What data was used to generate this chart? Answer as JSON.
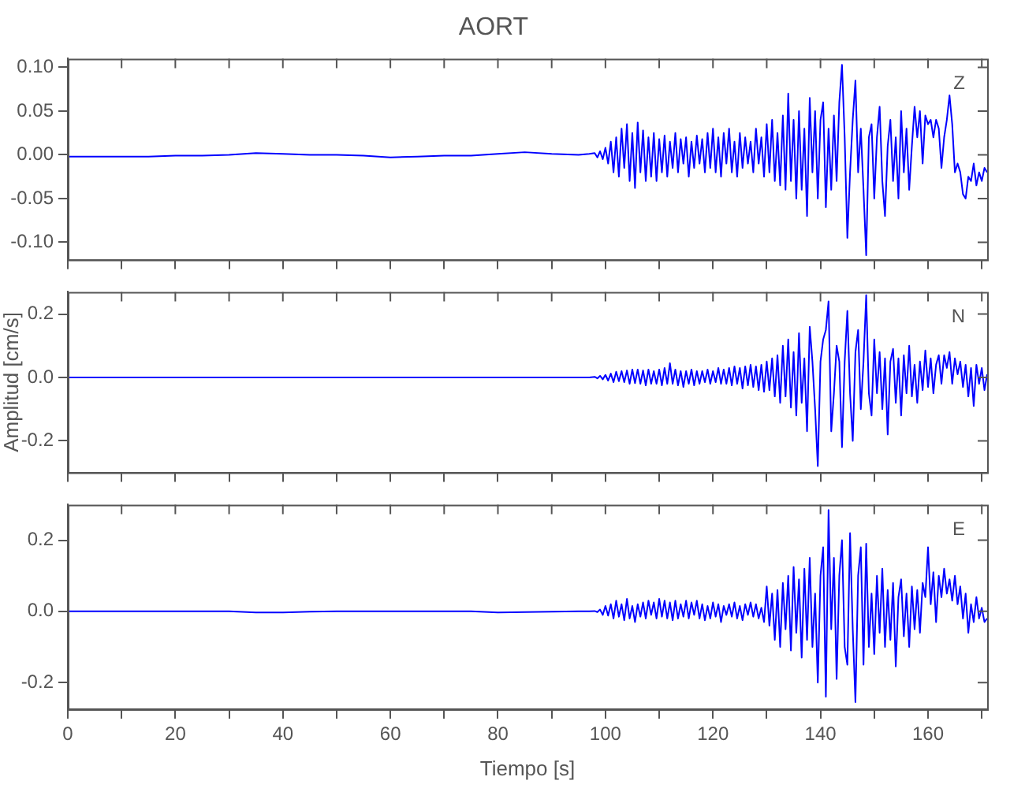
{
  "chart_data": [
    {
      "type": "line",
      "title": "AORT",
      "annotations": [
        "Z"
      ],
      "tick_labels": "y",
      "marker": "none",
      "line_style": "solid",
      "x": [
        0,
        5,
        10,
        15,
        20,
        25,
        30,
        35,
        40,
        45,
        50,
        55,
        60,
        65,
        70,
        75,
        80,
        85,
        90,
        95,
        97,
        98,
        98.5,
        99,
        99.5,
        100,
        100.5,
        101,
        101.5,
        102,
        102.5,
        103,
        103.5,
        104,
        104.5,
        105,
        105.5,
        106,
        106.5,
        107,
        107.5,
        108,
        108.5,
        109,
        109.5,
        110,
        110.5,
        111,
        111.5,
        112,
        112.5,
        113,
        113.5,
        114,
        114.5,
        115,
        115.5,
        116,
        116.5,
        117,
        117.5,
        118,
        118.5,
        119,
        119.5,
        120,
        120.5,
        121,
        121.5,
        122,
        122.5,
        123,
        123.5,
        124,
        124.5,
        125,
        125.5,
        126,
        126.5,
        127,
        127.5,
        128,
        128.5,
        129,
        129.5,
        130,
        130.5,
        131,
        131.5,
        132,
        132.5,
        133,
        133.5,
        134,
        134.5,
        135,
        135.5,
        136,
        136.5,
        137,
        137.5,
        138,
        138.5,
        139,
        139.5,
        140,
        140.5,
        141,
        141.5,
        142,
        142.5,
        143,
        143.5,
        144,
        144.5,
        145,
        145.5,
        146,
        146.5,
        147,
        147.5,
        148,
        148.5,
        149,
        149.5,
        150,
        150.5,
        151,
        151.5,
        152,
        152.5,
        153,
        153.5,
        154,
        154.5,
        155,
        155.5,
        156,
        156.5,
        157,
        157.5,
        158,
        158.5,
        159,
        159.5,
        160,
        160.5,
        161,
        161.5,
        162,
        162.5,
        163,
        163.5,
        164,
        164.5,
        165,
        165.5,
        166,
        166.5,
        167,
        167.5,
        168,
        168.5,
        169,
        169.5,
        170,
        170.5,
        171
      ],
      "xlim": [
        0,
        171
      ],
      "xticks": [
        0,
        10,
        20,
        30,
        40,
        50,
        60,
        70,
        80,
        90,
        100,
        110,
        120,
        130,
        140,
        150,
        160,
        170
      ],
      "ylim": [
        -0.12,
        0.11
      ],
      "yticks": [
        {
          "value": -0.1,
          "label": "-0.10"
        },
        {
          "value": -0.05,
          "label": "-0.05"
        },
        {
          "value": 0,
          "label": "0.00"
        },
        {
          "value": 0.05,
          "label": "0.05"
        },
        {
          "value": 0.1,
          "label": "0.10"
        }
      ],
      "series": [
        {
          "color": "#0000ff",
          "values": [
            -0.002,
            -0.002,
            -0.002,
            -0.002,
            -0.001,
            -0.001,
            0,
            0.002,
            0.001,
            0,
            0,
            -0.001,
            -0.003,
            -0.002,
            -0.001,
            -0.001,
            0.001,
            0.003,
            0.001,
            0,
            0.001,
            0.002,
            -0.003,
            0.004,
            -0.005,
            0.008,
            -0.01,
            0.015,
            -0.02,
            0.02,
            -0.025,
            0.03,
            -0.015,
            0.035,
            -0.03,
            0.025,
            -0.038,
            0.037,
            -0.02,
            0.028,
            -0.03,
            0.02,
            -0.025,
            0.025,
            -0.03,
            0.018,
            -0.02,
            0.022,
            -0.025,
            0.015,
            -0.015,
            0.025,
            -0.02,
            0.018,
            -0.01,
            0.02,
            -0.025,
            0.015,
            -0.015,
            0.022,
            -0.01,
            0.018,
            -0.02,
            0.025,
            -0.015,
            0.03,
            -0.02,
            0.02,
            -0.025,
            0.025,
            -0.01,
            0.03,
            -0.02,
            0.015,
            -0.025,
            0.025,
            -0.015,
            0.02,
            -0.01,
            0.015,
            -0.02,
            0.03,
            -0.01,
            0.02,
            -0.025,
            0.035,
            -0.02,
            0.04,
            -0.03,
            0.025,
            -0.035,
            0.045,
            -0.04,
            0.07,
            -0.03,
            0.04,
            -0.05,
            0.05,
            -0.04,
            0.03,
            -0.07,
            0.065,
            -0.02,
            0.05,
            -0.05,
            0.04,
            0.06,
            -0.06,
            0.03,
            -0.04,
            0.045,
            -0.03,
            0.06,
            0.103,
            0.02,
            -0.095,
            -0.02,
            0.04,
            0.085,
            -0.02,
            0.03,
            -0.04,
            -0.115,
            0.02,
            0.035,
            -0.05,
            0.02,
            0.055,
            -0.03,
            -0.07,
            0.01,
            0.04,
            -0.03,
            0.02,
            -0.05,
            0.05,
            -0.02,
            0.03,
            -0.04,
            0.01,
            0.055,
            0.02,
            0.05,
            -0.01,
            0.045,
            0.035,
            0.04,
            0.02,
            0.04,
            0.03,
            -0.015,
            0.02,
            0.04,
            0.068,
            0.035,
            -0.02,
            -0.01,
            -0.02,
            -0.045,
            -0.05,
            -0.025,
            -0.03,
            -0.01,
            -0.035,
            -0.02,
            -0.03,
            -0.015,
            -0.02
          ]
        }
      ]
    },
    {
      "type": "line",
      "ylabel": "Amplitud [cm/s]",
      "annotations": [
        "N"
      ],
      "tick_labels": "y",
      "marker": "none",
      "line_style": "solid",
      "x": [
        0,
        5,
        10,
        15,
        20,
        25,
        30,
        35,
        40,
        45,
        50,
        55,
        60,
        65,
        70,
        75,
        80,
        85,
        90,
        95,
        97,
        98,
        98.5,
        99,
        99.5,
        100,
        100.5,
        101,
        101.5,
        102,
        102.5,
        103,
        103.5,
        104,
        104.5,
        105,
        105.5,
        106,
        106.5,
        107,
        107.5,
        108,
        108.5,
        109,
        109.5,
        110,
        110.5,
        111,
        111.5,
        112,
        112.5,
        113,
        113.5,
        114,
        114.5,
        115,
        115.5,
        116,
        116.5,
        117,
        117.5,
        118,
        118.5,
        119,
        119.5,
        120,
        120.5,
        121,
        121.5,
        122,
        122.5,
        123,
        123.5,
        124,
        124.5,
        125,
        125.5,
        126,
        126.5,
        127,
        127.5,
        128,
        128.5,
        129,
        129.5,
        130,
        130.5,
        131,
        131.5,
        132,
        132.5,
        133,
        133.5,
        134,
        134.5,
        135,
        135.5,
        136,
        136.5,
        137,
        137.5,
        138,
        138.5,
        139,
        139.5,
        140,
        140.5,
        141,
        141.5,
        142,
        142.5,
        143,
        143.5,
        144,
        144.5,
        145,
        145.5,
        146,
        146.5,
        147,
        147.5,
        148,
        148.5,
        149,
        149.5,
        150,
        150.5,
        151,
        151.5,
        152,
        152.5,
        153,
        153.5,
        154,
        154.5,
        155,
        155.5,
        156,
        156.5,
        157,
        157.5,
        158,
        158.5,
        159,
        159.5,
        160,
        160.5,
        161,
        161.5,
        162,
        162.5,
        163,
        163.5,
        164,
        164.5,
        165,
        165.5,
        166,
        166.5,
        167,
        167.5,
        168,
        168.5,
        169,
        169.5,
        170,
        170.5,
        171
      ],
      "xlim": [
        0,
        171
      ],
      "xticks": [
        0,
        10,
        20,
        30,
        40,
        50,
        60,
        70,
        80,
        90,
        100,
        110,
        120,
        130,
        140,
        150,
        160,
        170
      ],
      "ylim": [
        -0.3,
        0.27
      ],
      "yticks": [
        {
          "value": -0.2,
          "label": "-0.2"
        },
        {
          "value": 0,
          "label": "0.0"
        },
        {
          "value": 0.2,
          "label": "0.2"
        }
      ],
      "series": [
        {
          "color": "#0000ff",
          "values": [
            0,
            0,
            0,
            0,
            0,
            0,
            0,
            0,
            0,
            0,
            0,
            0,
            0,
            0,
            0,
            0,
            0,
            0,
            0,
            0,
            0,
            0.002,
            -0.003,
            0.005,
            -0.006,
            0.008,
            -0.01,
            0.012,
            -0.015,
            0.018,
            -0.012,
            0.02,
            -0.015,
            0.022,
            -0.02,
            0.025,
            -0.018,
            0.025,
            -0.02,
            0.022,
            -0.025,
            0.025,
            -0.02,
            0.02,
            -0.02,
            0.025,
            -0.025,
            0.03,
            -0.02,
            0.045,
            -0.02,
            0.025,
            -0.025,
            0.02,
            -0.03,
            0.02,
            -0.02,
            0.025,
            -0.025,
            0.02,
            -0.02,
            0.02,
            -0.015,
            0.025,
            -0.02,
            0.02,
            -0.015,
            0.03,
            -0.02,
            0.025,
            -0.02,
            0.03,
            -0.025,
            0.035,
            -0.02,
            0.03,
            -0.035,
            0.035,
            -0.025,
            0.04,
            -0.03,
            0.035,
            -0.04,
            0.04,
            -0.045,
            0.05,
            -0.04,
            0.06,
            -0.06,
            0.07,
            -0.08,
            0.1,
            -0.06,
            0.12,
            -0.095,
            0.08,
            -0.12,
            0.14,
            -0.08,
            0.06,
            -0.17,
            0.16,
            0.05,
            -0.1,
            -0.28,
            0.05,
            0.12,
            0.15,
            0.24,
            -0.17,
            -0.05,
            0.1,
            0.05,
            -0.22,
            0.05,
            0.21,
            -0.05,
            -0.2,
            0.08,
            0.15,
            -0.1,
            0.05,
            0.26,
            -0.05,
            -0.12,
            0.12,
            -0.05,
            0.08,
            -0.1,
            0.06,
            -0.18,
            0.05,
            0.09,
            -0.08,
            0.06,
            -0.12,
            0.07,
            -0.05,
            0.1,
            -0.06,
            0.04,
            -0.08,
            0.05,
            -0.04,
            0.085,
            -0.03,
            0.06,
            -0.05,
            0.04,
            0.07,
            -0.02,
            0.07,
            0.03,
            0.08,
            -0.02,
            0.06,
            0.01,
            0.05,
            -0.03,
            0.04,
            -0.06,
            0.03,
            -0.09,
            0.04,
            -0.02,
            0.03,
            -0.04,
            0.01
          ]
        }
      ]
    },
    {
      "type": "line",
      "xlabel": "Tiempo [s]",
      "annotations": [
        "E"
      ],
      "marker": "none",
      "line_style": "solid",
      "x": [
        0,
        5,
        10,
        15,
        20,
        25,
        30,
        35,
        40,
        45,
        50,
        55,
        60,
        65,
        70,
        75,
        80,
        85,
        90,
        95,
        97,
        98,
        98.5,
        99,
        99.5,
        100,
        100.5,
        101,
        101.5,
        102,
        102.5,
        103,
        103.5,
        104,
        104.5,
        105,
        105.5,
        106,
        106.5,
        107,
        107.5,
        108,
        108.5,
        109,
        109.5,
        110,
        110.5,
        111,
        111.5,
        112,
        112.5,
        113,
        113.5,
        114,
        114.5,
        115,
        115.5,
        116,
        116.5,
        117,
        117.5,
        118,
        118.5,
        119,
        119.5,
        120,
        120.5,
        121,
        121.5,
        122,
        122.5,
        123,
        123.5,
        124,
        124.5,
        125,
        125.5,
        126,
        126.5,
        127,
        127.5,
        128,
        128.5,
        129,
        129.5,
        130,
        130.5,
        131,
        131.5,
        132,
        132.5,
        133,
        133.5,
        134,
        134.5,
        135,
        135.5,
        136,
        136.5,
        137,
        137.5,
        138,
        138.5,
        139,
        139.5,
        140,
        140.5,
        141,
        141.5,
        142,
        142.5,
        143,
        143.5,
        144,
        144.5,
        145,
        145.5,
        146,
        146.5,
        147,
        147.5,
        148,
        148.5,
        149,
        149.5,
        150,
        150.5,
        151,
        151.5,
        152,
        152.5,
        153,
        153.5,
        154,
        154.5,
        155,
        155.5,
        156,
        156.5,
        157,
        157.5,
        158,
        158.5,
        159,
        159.5,
        160,
        160.5,
        161,
        161.5,
        162,
        162.5,
        163,
        163.5,
        164,
        164.5,
        165,
        165.5,
        166,
        166.5,
        167,
        167.5,
        168,
        168.5,
        169,
        169.5,
        170,
        170.5,
        171
      ],
      "xlim": [
        0,
        171
      ],
      "xticks": [
        0,
        {
          "value": 10,
          "label": null
        },
        20,
        {
          "value": 30,
          "label": null
        },
        40,
        {
          "value": 50,
          "label": null
        },
        60,
        {
          "value": 70,
          "label": null
        },
        80,
        {
          "value": 90,
          "label": null
        },
        100,
        {
          "value": 110,
          "label": null
        },
        120,
        {
          "value": 130,
          "label": null
        },
        140,
        {
          "value": 150,
          "label": null
        },
        160,
        {
          "value": 170,
          "label": null
        }
      ],
      "ylim": [
        -0.275,
        0.3
      ],
      "yticks": [
        {
          "value": -0.2,
          "label": "-0.2"
        },
        {
          "value": 0,
          "label": "0.0"
        },
        {
          "value": 0.2,
          "label": "0.2"
        }
      ],
      "series": [
        {
          "color": "#0000ff",
          "values": [
            0,
            0,
            0,
            0,
            0,
            0,
            0,
            -0.003,
            -0.003,
            -0.001,
            0,
            0,
            0,
            0,
            0,
            0,
            -0.003,
            -0.002,
            -0.001,
            0,
            0,
            0.001,
            -0.002,
            0.005,
            -0.01,
            0.015,
            -0.012,
            0.02,
            -0.02,
            0.03,
            -0.015,
            0.02,
            -0.025,
            0.035,
            -0.02,
            0.015,
            -0.03,
            0.02,
            -0.015,
            0.025,
            -0.02,
            0.03,
            -0.01,
            0.025,
            -0.02,
            0.035,
            -0.015,
            0.03,
            -0.02,
            0.025,
            -0.025,
            0.03,
            -0.02,
            0.02,
            -0.015,
            0.03,
            -0.02,
            0.025,
            -0.01,
            0.03,
            -0.02,
            0.02,
            -0.025,
            0.015,
            -0.02,
            0.025,
            -0.015,
            0.02,
            -0.03,
            0.015,
            -0.01,
            0.02,
            -0.015,
            0.025,
            -0.02,
            0.015,
            -0.025,
            0.02,
            -0.01,
            0.025,
            -0.015,
            0.02,
            -0.02,
            0.01,
            -0.03,
            0.07,
            -0.04,
            0.05,
            -0.08,
            0.06,
            -0.1,
            0.08,
            -0.05,
            0.1,
            -0.11,
            0.125,
            -0.06,
            0.09,
            -0.13,
            0.12,
            -0.08,
            0.15,
            -0.1,
            0.05,
            -0.2,
            0.1,
            0.18,
            -0.24,
            0.285,
            -0.05,
            0.15,
            -0.19,
            0.1,
            0.2,
            -0.1,
            -0.15,
            0.22,
            -0.05,
            -0.255,
            0.1,
            0.18,
            -0.15,
            0.19,
            -0.1,
            0.05,
            -0.12,
            0.1,
            -0.06,
            0.12,
            -0.1,
            0.06,
            -0.08,
            0.08,
            -0.155,
            0.04,
            0.09,
            -0.07,
            0.05,
            -0.1,
            0.07,
            -0.05,
            0.06,
            -0.06,
            0.08,
            0.04,
            0.18,
            0.02,
            0.11,
            -0.03,
            0.1,
            0.04,
            0.12,
            0.05,
            0.09,
            0.03,
            0.1,
            0.02,
            0.07,
            -0.02,
            0.05,
            -0.06,
            0.02,
            -0.03,
            0.04,
            -0.02,
            0.01,
            -0.03,
            -0.02
          ]
        }
      ]
    }
  ]
}
